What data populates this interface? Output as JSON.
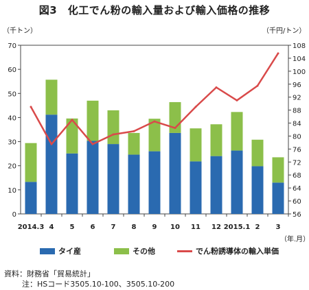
{
  "title": "図3　化工でん粉の輸入量および輸入価格の推移",
  "left_unit": "（千トン）",
  "right_unit": "（千円/トン）",
  "x_unit": "（年.月）",
  "source_note": "資料：財務省「貿易統計」",
  "hs_note": "注：HSコード3505.10-100、3505.10-200",
  "chart_data": {
    "type": "bar",
    "stacked": true,
    "categories": [
      "2014.3",
      "4",
      "5",
      "6",
      "7",
      "8",
      "9",
      "10",
      "11",
      "12",
      "2015.1",
      "2",
      "3"
    ],
    "series": [
      {
        "name": "タイ産",
        "color": "#2a6ab0",
        "axis": "left",
        "values": [
          13.3,
          41.2,
          25.1,
          30.3,
          29.0,
          24.6,
          26.0,
          33.6,
          21.8,
          24.0,
          26.3,
          19.8,
          13.0
        ]
      },
      {
        "name": "その他",
        "color": "#8cbf4a",
        "axis": "left",
        "values": [
          16.1,
          14.5,
          14.5,
          16.7,
          14.0,
          9.0,
          13.5,
          12.8,
          13.7,
          13.2,
          16.0,
          11.0,
          10.5
        ]
      },
      {
        "name": "でん粉誘導体の輸入単価",
        "type": "line",
        "color": "#d94a4a",
        "axis": "right",
        "values": [
          89,
          77.5,
          85,
          77.5,
          80.5,
          81.5,
          84.5,
          82.5,
          89,
          95,
          91,
          95.5,
          105.5
        ]
      }
    ],
    "ylim_left": [
      0,
      70
    ],
    "yticks_left": [
      0,
      10,
      20,
      30,
      40,
      50,
      60,
      70
    ],
    "ylim_right": [
      56,
      108
    ],
    "yticks_right": [
      56,
      60,
      64,
      68,
      72,
      76,
      80,
      84,
      88,
      92,
      96,
      100,
      104,
      108
    ],
    "grid": false,
    "legend": "bottom"
  }
}
